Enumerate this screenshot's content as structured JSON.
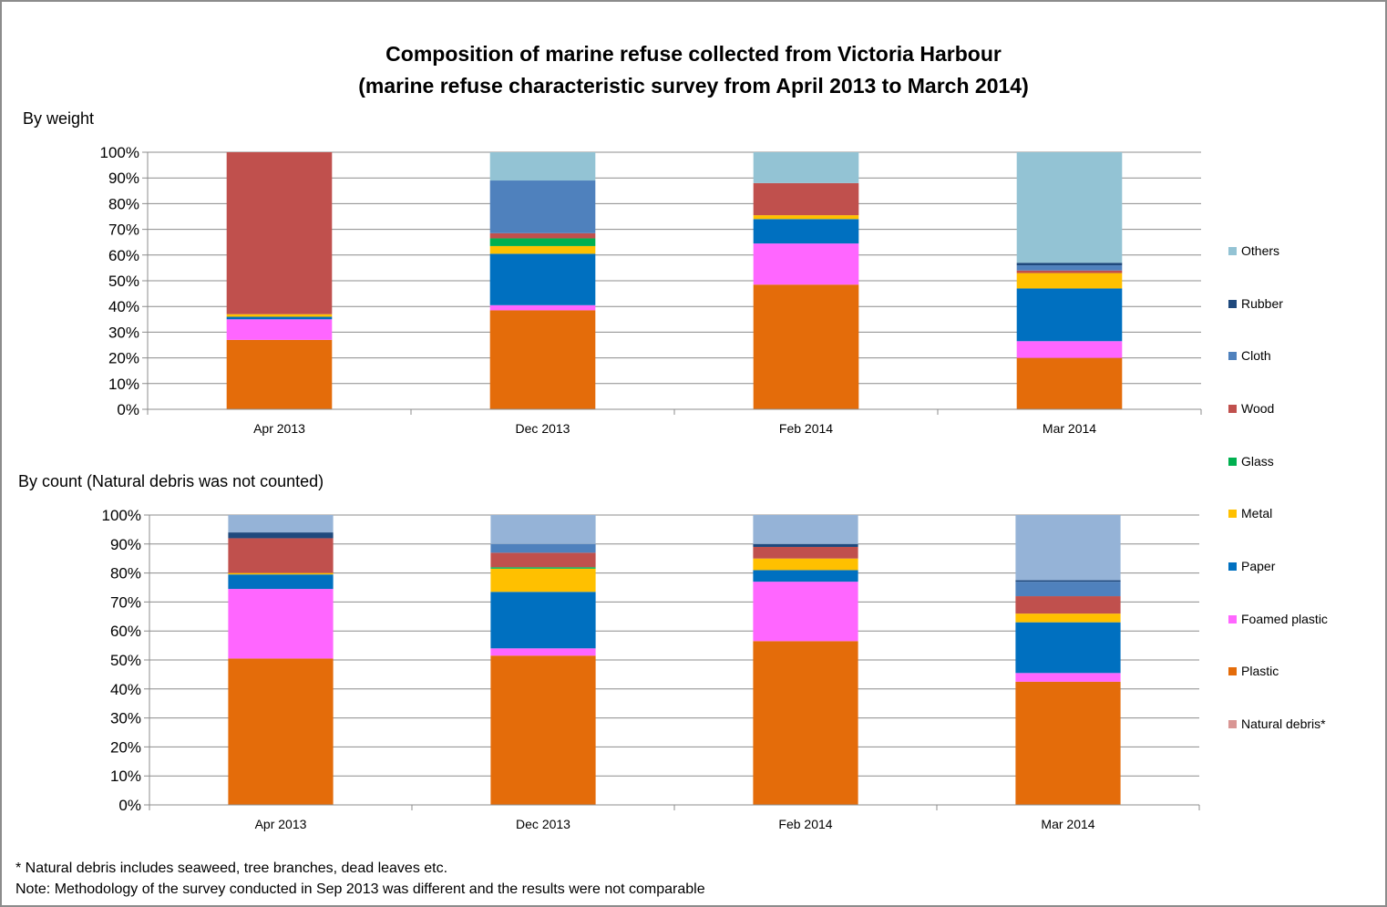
{
  "title_line1": "Composition of marine refuse collected from Victoria Harbour",
  "title_line2": "(marine refuse characteristic survey from April 2013 to March 2014)",
  "footnotes": [
    "* Natural debris includes seaweed, tree branches, dead leaves etc.",
    "Note: Methodology of the survey conducted in Sep 2013 was different and the results were not comparable"
  ],
  "legend": [
    {
      "name": "Others",
      "color": "#93c3d4"
    },
    {
      "name": "Rubber",
      "color": "#1f497d"
    },
    {
      "name": "Cloth",
      "color": "#4f81bd"
    },
    {
      "name": "Wood",
      "color": "#c0504d"
    },
    {
      "name": "Glass",
      "color": "#00b050"
    },
    {
      "name": "Metal",
      "color": "#ffc000"
    },
    {
      "name": "Paper",
      "color": "#0070c0"
    },
    {
      "name": "Foamed plastic",
      "color": "#ff66ff"
    },
    {
      "name": "Plastic",
      "color": "#e46c0a"
    },
    {
      "name": "Natural debris*",
      "color": "#d99694"
    }
  ],
  "chart_data": [
    {
      "type": "bar",
      "stacked": true,
      "subtitle": "By weight",
      "categories": [
        "Apr 2013",
        "Dec 2013",
        "Feb 2014",
        "Mar 2014"
      ],
      "ylim": [
        0,
        100
      ],
      "yticks": [
        "0%",
        "10%",
        "20%",
        "30%",
        "40%",
        "50%",
        "60%",
        "70%",
        "80%",
        "90%",
        "100%"
      ],
      "grid": true,
      "legend_position": "right",
      "series": [
        {
          "name": "Natural debris*",
          "color": "#d99694",
          "values": [
            0,
            0,
            0,
            0
          ]
        },
        {
          "name": "Plastic",
          "color": "#e46c0a",
          "values": [
            27,
            38.5,
            48.5,
            20
          ]
        },
        {
          "name": "Foamed plastic",
          "color": "#ff66ff",
          "values": [
            8,
            2,
            16,
            6.5
          ]
        },
        {
          "name": "Paper",
          "color": "#0070c0",
          "values": [
            1,
            20,
            9.5,
            20.5
          ]
        },
        {
          "name": "Metal",
          "color": "#ffc000",
          "values": [
            1,
            3,
            1.5,
            6
          ]
        },
        {
          "name": "Glass",
          "color": "#00b050",
          "values": [
            0,
            3,
            0,
            0
          ]
        },
        {
          "name": "Wood",
          "color": "#c0504d",
          "values": [
            63,
            2,
            12.5,
            1
          ]
        },
        {
          "name": "Cloth",
          "color": "#4f81bd",
          "values": [
            0,
            20.5,
            0,
            2
          ]
        },
        {
          "name": "Rubber",
          "color": "#1f497d",
          "values": [
            0,
            0,
            0,
            1
          ]
        },
        {
          "name": "Others",
          "color": "#93c3d4",
          "values": [
            0,
            11,
            12,
            43
          ]
        }
      ]
    },
    {
      "type": "bar",
      "stacked": true,
      "subtitle": "By count (Natural debris was not counted)",
      "categories": [
        "Apr 2013",
        "Dec 2013",
        "Feb 2014",
        "Mar 2014"
      ],
      "ylim": [
        0,
        100
      ],
      "yticks": [
        "0%",
        "10%",
        "20%",
        "30%",
        "40%",
        "50%",
        "60%",
        "70%",
        "80%",
        "90%",
        "100%"
      ],
      "grid": true,
      "legend_position": "right",
      "series": [
        {
          "name": "Plastic",
          "color": "#e46c0a",
          "values": [
            50.5,
            51.5,
            56.5,
            42.5
          ]
        },
        {
          "name": "Foamed plastic",
          "color": "#ff66ff",
          "values": [
            24,
            2.5,
            20.5,
            3
          ]
        },
        {
          "name": "Paper",
          "color": "#0070c0",
          "values": [
            5,
            19.5,
            4,
            17.5
          ]
        },
        {
          "name": "Metal",
          "color": "#ffc000",
          "values": [
            0.5,
            8,
            4,
            3
          ]
        },
        {
          "name": "Glass",
          "color": "#00b050",
          "values": [
            0,
            0.5,
            0,
            0
          ]
        },
        {
          "name": "Wood",
          "color": "#c0504d",
          "values": [
            12,
            5,
            4,
            6
          ]
        },
        {
          "name": "Cloth",
          "color": "#4f81bd",
          "values": [
            0,
            3,
            0,
            5
          ]
        },
        {
          "name": "Rubber",
          "color": "#1f497d",
          "values": [
            2,
            0,
            1,
            0.5
          ]
        },
        {
          "name": "Others",
          "color": "#95b3d7",
          "values": [
            6,
            10,
            10,
            22.5
          ]
        }
      ]
    }
  ]
}
